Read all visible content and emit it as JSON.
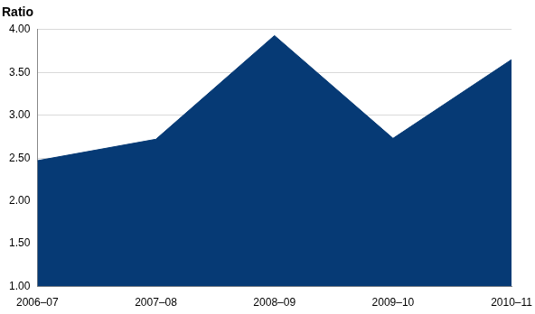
{
  "chart_data": {
    "type": "area",
    "y_label": "Ratio",
    "categories": [
      "2006–07",
      "2007–08",
      "2008–09",
      "2009–10",
      "2010–11"
    ],
    "values": [
      2.47,
      2.72,
      3.93,
      2.73,
      3.65
    ],
    "color": "#063a75",
    "ylim": [
      1,
      4
    ],
    "yticks": [
      {
        "value": 1,
        "label": "1.00"
      },
      {
        "value": 1.5,
        "label": "1.50"
      },
      {
        "value": 2,
        "label": "2.00"
      },
      {
        "value": 2.5,
        "label": "2.50"
      },
      {
        "value": 3,
        "label": "3.00"
      },
      {
        "value": 3.5,
        "label": "3.50"
      },
      {
        "value": 4,
        "label": "4.00"
      }
    ],
    "grid": true
  }
}
